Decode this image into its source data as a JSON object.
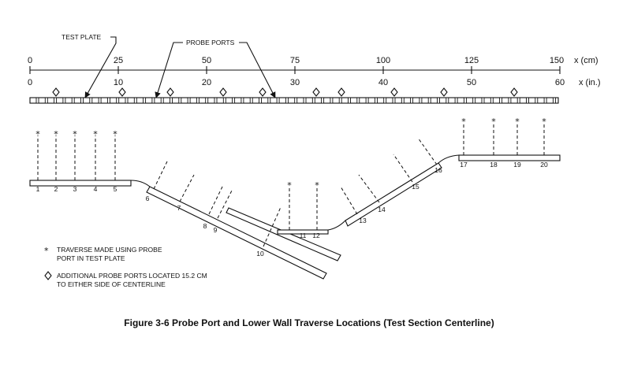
{
  "labels": {
    "test_plate": "TEST PLATE",
    "probe_ports": "PROBE PORTS",
    "x_cm": "x (cm)",
    "x_in": "x (in.)"
  },
  "scale_cm": [
    "0",
    "25",
    "50",
    "75",
    "100",
    "125",
    "150"
  ],
  "scale_in": [
    "0",
    "10",
    "20",
    "30",
    "40",
    "50",
    "60"
  ],
  "stations": [
    "1",
    "2",
    "3",
    "4",
    "5",
    "6",
    "7",
    "8",
    "9",
    "10",
    "11",
    "12",
    "13",
    "14",
    "15",
    "16",
    "17",
    "18",
    "19",
    "20"
  ],
  "legend": {
    "star_symbol": "*",
    "star_line1": "TRAVERSE MADE USING PROBE",
    "star_line2": "PORT IN TEST PLATE",
    "diamond_line1": "ADDITIONAL PROBE PORTS LOCATED 15.2 CM",
    "diamond_line2": "TO EITHER SIDE OF CENTERLINE"
  },
  "caption": "Figure 3-6   Probe Port and Lower Wall Traverse Locations (Test Section Centerline)"
}
